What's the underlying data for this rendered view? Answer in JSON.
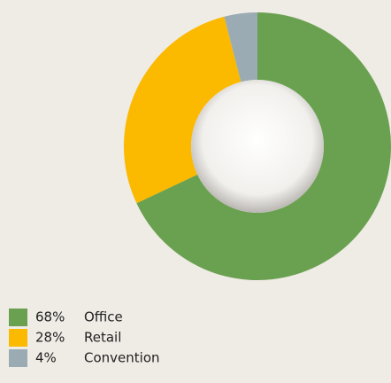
{
  "chart_data": {
    "type": "donut",
    "categories": [
      "Office",
      "Retail",
      "Convention"
    ],
    "values": [
      68,
      28,
      4
    ],
    "value_labels": [
      "68%",
      "28%",
      "4%"
    ],
    "colors": [
      "#6aa150",
      "#fbb900",
      "#9aabb4"
    ]
  }
}
